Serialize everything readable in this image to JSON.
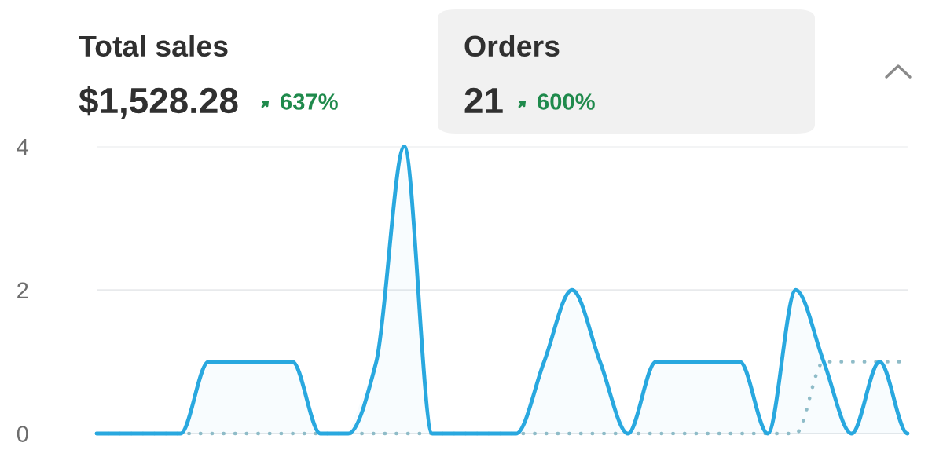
{
  "chart_data": {
    "type": "line",
    "annotations": [
      "Total sales",
      "$1,528.28",
      "637%",
      "Orders",
      "21",
      "600%"
    ],
    "categories": [
      null,
      null,
      null,
      null,
      null,
      null,
      null,
      null,
      null,
      null,
      null,
      null,
      null,
      null,
      null,
      null,
      null,
      null,
      null,
      null,
      null,
      null,
      null,
      null,
      null,
      null,
      null,
      null,
      null,
      null
    ],
    "series": [
      {
        "color": "#29a8df",
        "line_style": "solid",
        "values": [
          0,
          0,
          0,
          0,
          1,
          1,
          1,
          1,
          0,
          0,
          1,
          4,
          0,
          0,
          0,
          0,
          1,
          2,
          1,
          0,
          1,
          1,
          1,
          1,
          0,
          2,
          1,
          0,
          1,
          0
        ]
      },
      {
        "color": "#8fbcc8",
        "line_style": "dotted",
        "values": [
          0,
          0,
          0,
          0,
          0,
          0,
          0,
          0,
          0,
          0,
          0,
          0,
          0,
          0,
          0,
          0,
          0,
          0,
          0,
          0,
          0,
          0,
          0,
          0,
          0,
          0,
          1,
          1,
          1,
          1
        ]
      }
    ],
    "ylim": [
      0,
      4
    ],
    "yticks": [
      0,
      2,
      4
    ],
    "grid": "y",
    "tick_labels": "y",
    "legend": false
  }
}
